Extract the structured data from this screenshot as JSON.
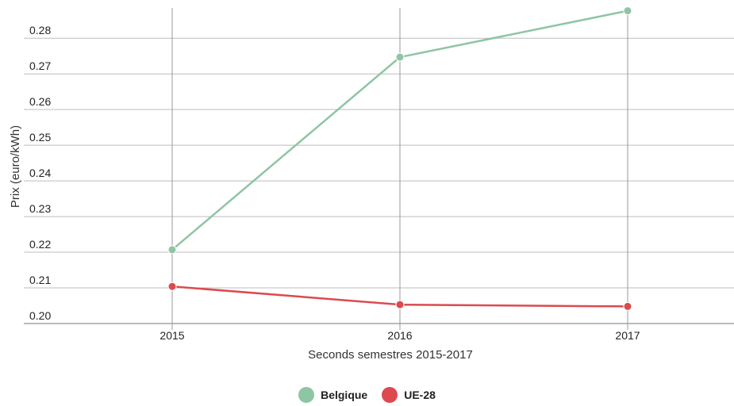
{
  "chart_data": {
    "type": "line",
    "title": "",
    "xlabel": "Seconds semestres 2015-2017",
    "ylabel": "Prix (euro/kWh)",
    "categories": [
      "2015",
      "2016",
      "2017"
    ],
    "y_ticks": [
      "0.20",
      "0.21",
      "0.22",
      "0.23",
      "0.24",
      "0.25",
      "0.26",
      "0.27",
      "0.28"
    ],
    "ylim": [
      0.2,
      0.2885
    ],
    "grid": true,
    "legend_position": "bottom-center",
    "series": [
      {
        "name": "Belgique",
        "color": "#8ec5a4",
        "values": [
          0.2207,
          0.2747,
          0.2877
        ]
      },
      {
        "name": "UE-28",
        "color": "#dc4a4f",
        "values": [
          0.2104,
          0.2053,
          0.2048
        ]
      }
    ]
  }
}
